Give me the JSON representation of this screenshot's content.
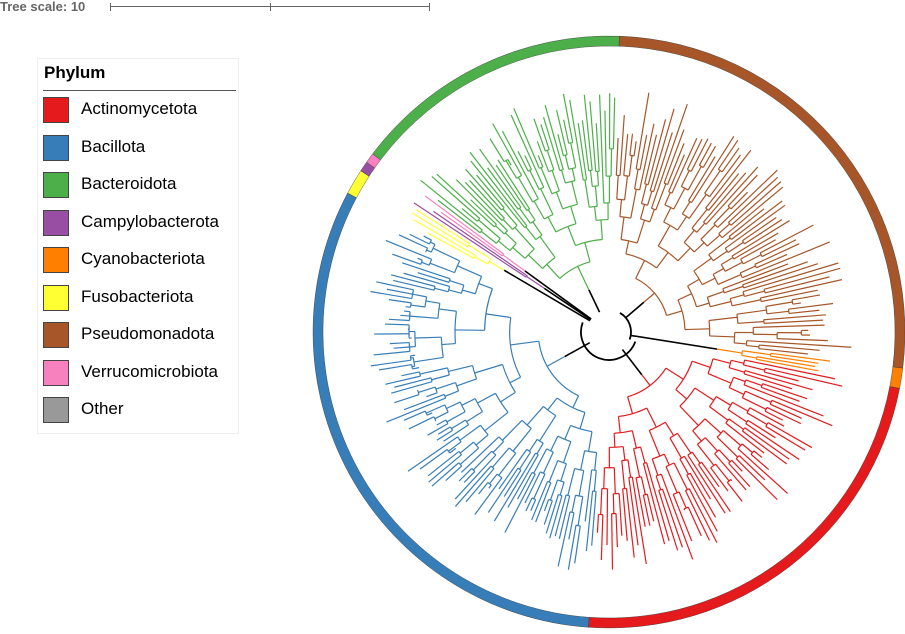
{
  "scale": {
    "label": "Tree scale: 10"
  },
  "legend": {
    "title": "Phylum",
    "items": [
      {
        "label": "Actinomycetota",
        "color": "#e41a1c"
      },
      {
        "label": "Bacillota",
        "color": "#377eb8"
      },
      {
        "label": "Bacteroidota",
        "color": "#4daf4a"
      },
      {
        "label": "Campylobacterota",
        "color": "#984ea3"
      },
      {
        "label": "Cyanobacteriota",
        "color": "#ff7f00"
      },
      {
        "label": "Fusobacteriota",
        "color": "#ffff33"
      },
      {
        "label": "Pseudomonadota",
        "color": "#a65628"
      },
      {
        "label": "Verrucomicrobiota",
        "color": "#f781bf"
      },
      {
        "label": "Other",
        "color": "#999999"
      }
    ]
  },
  "tree": {
    "clades": [
      {
        "phylum": "Pseudomonadota",
        "start_deg": -88,
        "end_deg": 7,
        "leaves": 70
      },
      {
        "phylum": "Cyanobacteriota",
        "start_deg": 7,
        "end_deg": 11,
        "leaves": 4
      },
      {
        "phylum": "Actinomycetota",
        "start_deg": 11,
        "end_deg": 94,
        "leaves": 60
      },
      {
        "phylum": "Bacillota",
        "start_deg": 94,
        "end_deg": 208,
        "leaves": 90
      },
      {
        "phylum": "Fusobacteriota",
        "start_deg": 208,
        "end_deg": 213,
        "leaves": 4
      },
      {
        "phylum": "Campylobacterota",
        "start_deg": 213,
        "end_deg": 215,
        "leaves": 2
      },
      {
        "phylum": "Verrucomicrobiota",
        "start_deg": 215,
        "end_deg": 217,
        "leaves": 2
      },
      {
        "phylum": "Bacteroidota",
        "start_deg": 217,
        "end_deg": 272,
        "leaves": 45
      }
    ]
  }
}
